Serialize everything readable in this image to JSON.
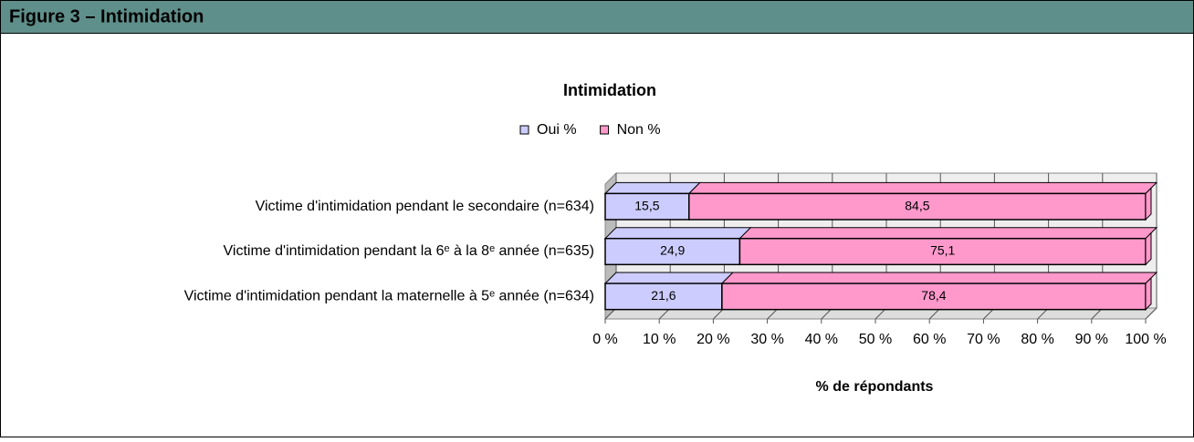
{
  "header": {
    "title": "Figure 3 – Intimidation"
  },
  "chart_data": {
    "type": "bar",
    "orientation": "horizontal",
    "stacked": true,
    "three_d": true,
    "title": "Intimidation",
    "x_label": "% de répondants",
    "categories": [
      "Victime d'intimidation pendant le secondaire (n=634)",
      "Victime d'intimidation pendant la 6ᵉ à la 8ᵉ année (n=635)",
      "Victime d'intimidation pendant la maternelle à 5ᵉ année (n=634)"
    ],
    "series": [
      {
        "name": "Oui %",
        "color": "#ccccff",
        "values": [
          15.5,
          24.9,
          21.6
        ],
        "value_labels": [
          "15,5",
          "24,9",
          "21,6"
        ]
      },
      {
        "name": "Non %",
        "color": "#ff99cc",
        "values": [
          84.5,
          75.1,
          78.4
        ],
        "value_labels": [
          "84,5",
          "75,1",
          "78,4"
        ]
      }
    ],
    "xlim": [
      0,
      100
    ],
    "xticks": [
      {
        "value": 0,
        "label": "0 %"
      },
      {
        "value": 10,
        "label": "10 %"
      },
      {
        "value": 20,
        "label": "20 %"
      },
      {
        "value": 30,
        "label": "30 %"
      },
      {
        "value": 40,
        "label": "40 %"
      },
      {
        "value": 50,
        "label": "50 %"
      },
      {
        "value": 60,
        "label": "60 %"
      },
      {
        "value": 70,
        "label": "70 %"
      },
      {
        "value": 80,
        "label": "80 %"
      },
      {
        "value": 90,
        "label": "90 %"
      },
      {
        "value": 100,
        "label": "100 %"
      }
    ],
    "grid": true,
    "legend": "top"
  }
}
